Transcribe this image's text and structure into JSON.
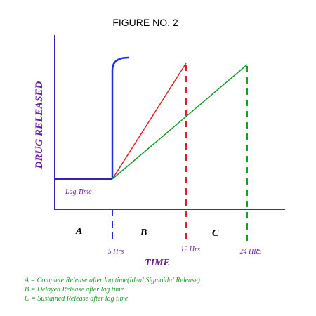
{
  "title": "FIGURE NO. 2",
  "axis_labels": {
    "y": "DRUG RELEASED",
    "x": "TIME"
  },
  "regions": {
    "lag": "Lag Time",
    "a": "A",
    "b": "B",
    "c": "C"
  },
  "time_marks": [
    "5 Hrs",
    "12 Hrs",
    "24 HRS"
  ],
  "legend": [
    "A = Complete Release after lag time(Ideal Sigmoidal Release)",
    "B = Delayed Release after lag time",
    "C = Sustained Release after lag time"
  ]
}
